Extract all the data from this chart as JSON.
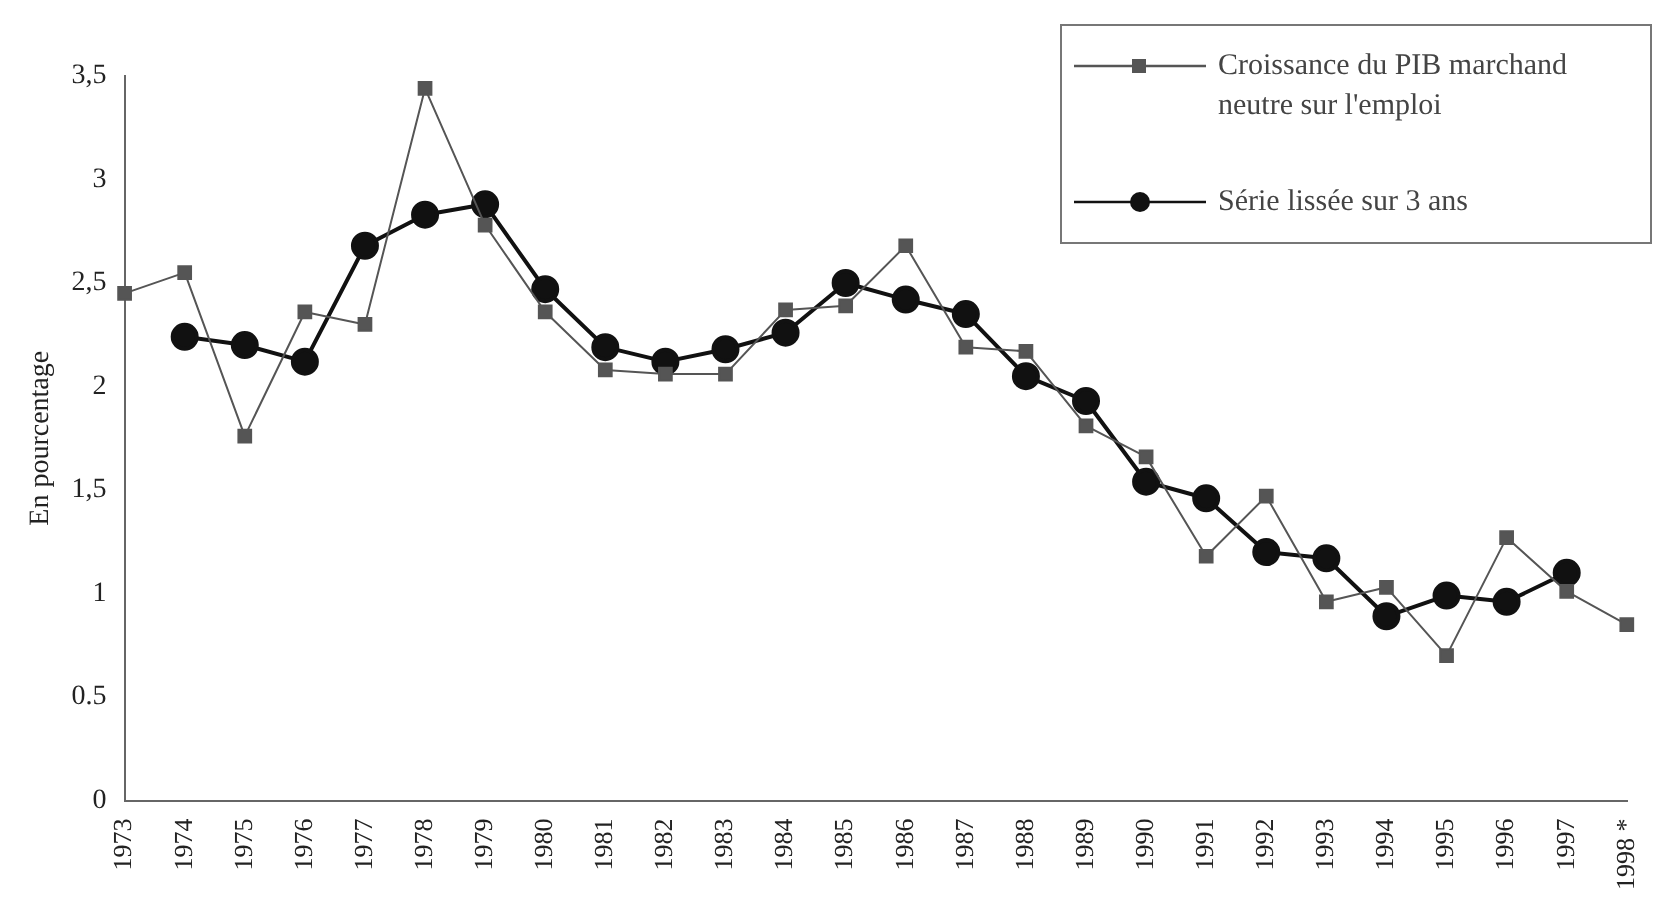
{
  "chart_data": {
    "type": "line",
    "ylabel": "En pourcentage",
    "categories": [
      "1973",
      "1974",
      "1975",
      "1976",
      "1977",
      "1978",
      "1979",
      "1980",
      "1981",
      "1982",
      "1983",
      "1984",
      "1985",
      "1986",
      "1987",
      "1988",
      "1989",
      "1990",
      "1991",
      "1992",
      "1993",
      "1994",
      "1995",
      "1996",
      "1997",
      "1998 *"
    ],
    "series": [
      {
        "name": "Croissance du PIB marchand neutre sur l'emploi",
        "color": "#555555",
        "marker": "square",
        "values": [
          2.45,
          2.55,
          1.76,
          2.36,
          2.3,
          3.44,
          2.78,
          2.36,
          2.08,
          2.06,
          2.06,
          2.37,
          2.39,
          2.68,
          2.19,
          2.17,
          1.81,
          1.66,
          1.18,
          1.47,
          0.96,
          1.03,
          0.7,
          1.27,
          1.01,
          0.85
        ]
      },
      {
        "name": "Série lissée sur 3 ans",
        "color": "#111111",
        "marker": "circle",
        "values": [
          null,
          2.24,
          2.2,
          2.12,
          2.68,
          2.83,
          2.88,
          2.47,
          2.19,
          2.12,
          2.18,
          2.26,
          2.5,
          2.42,
          2.35,
          2.05,
          1.93,
          1.54,
          1.46,
          1.2,
          1.17,
          0.89,
          0.99,
          0.96,
          1.1,
          null
        ]
      }
    ],
    "ylim": [
      0,
      3.5
    ],
    "yticks": [
      0,
      {
        "value": 0.5,
        "label": "0.5"
      },
      1,
      {
        "value": 1.5,
        "label": "1,5"
      },
      2,
      {
        "value": 2.5,
        "label": "2,5"
      },
      3,
      {
        "value": 3.5,
        "label": "3,5"
      }
    ],
    "grid": false,
    "legend": "top right"
  }
}
